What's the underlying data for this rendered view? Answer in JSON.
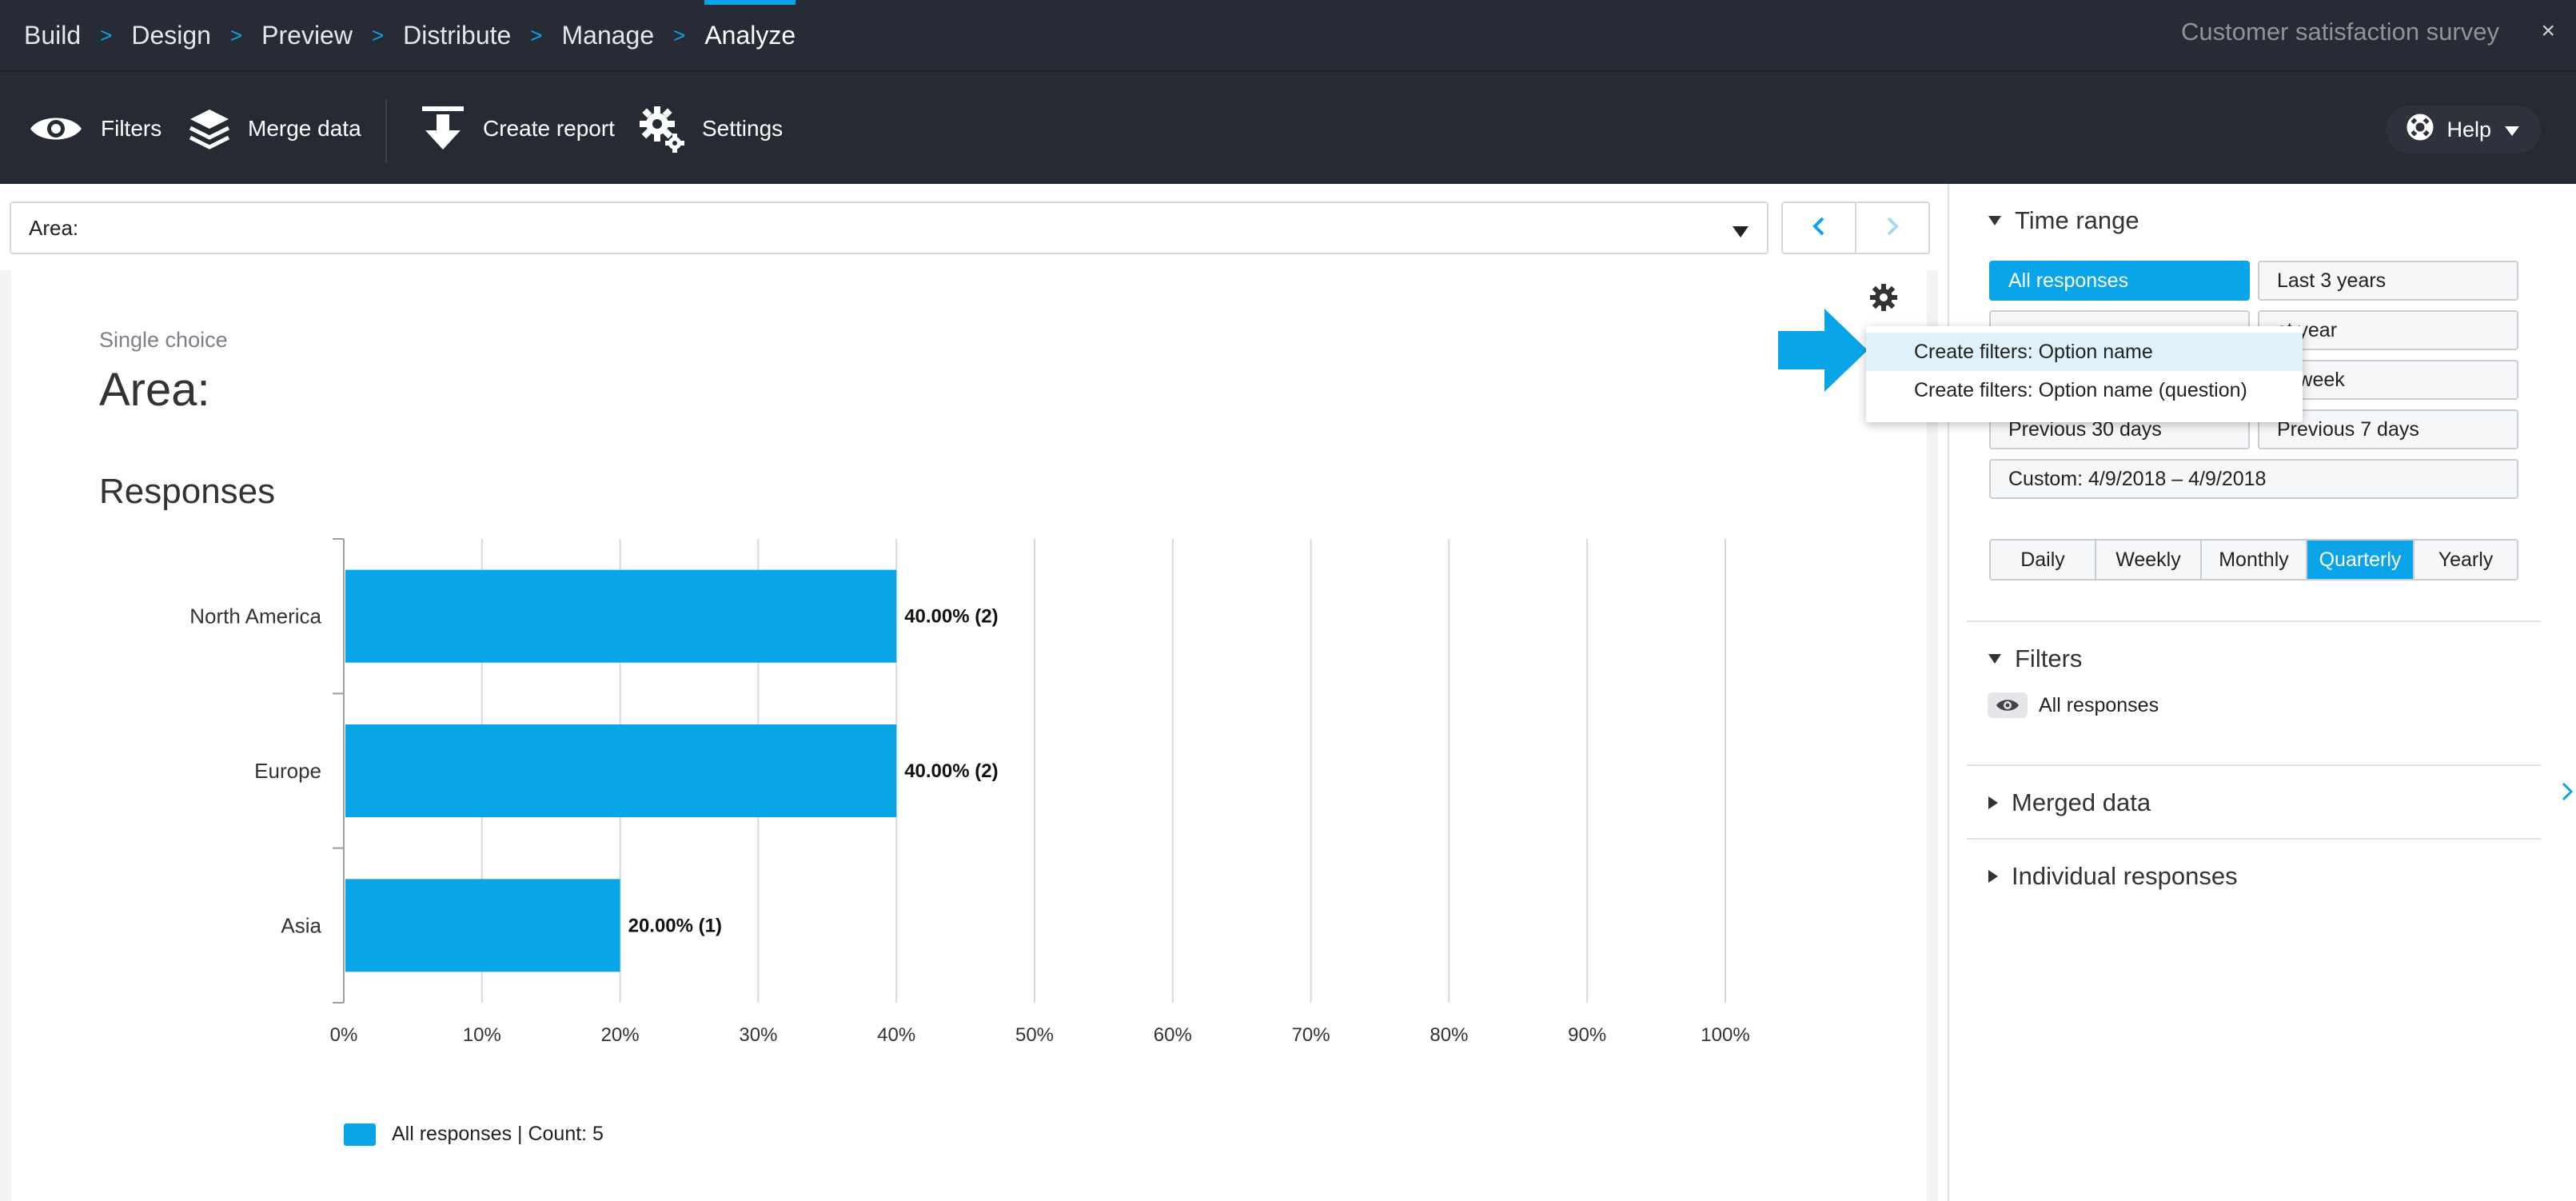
{
  "breadcrumbs": [
    {
      "label": "Build",
      "active": false
    },
    {
      "label": "Design",
      "active": false
    },
    {
      "label": "Preview",
      "active": false
    },
    {
      "label": "Distribute",
      "active": false
    },
    {
      "label": "Manage",
      "active": false
    },
    {
      "label": "Analyze",
      "active": true
    }
  ],
  "breadcrumb_separator": ">",
  "survey_title": "Customer satisfaction survey",
  "close_glyph": "×",
  "toolbar": {
    "filters_label": "Filters",
    "merge_label": "Merge data",
    "create_report_label": "Create report",
    "settings_label": "Settings",
    "help_label": "Help"
  },
  "selector": {
    "value": "Area:"
  },
  "question": {
    "type": "Single choice",
    "title": "Area:",
    "section": "Responses"
  },
  "context_menu": {
    "items": [
      "Create filters: Option name",
      "Create filters: Option name (question)"
    ],
    "highlighted_index": 0
  },
  "chart_data": {
    "type": "bar",
    "orientation": "horizontal",
    "categories": [
      "North America",
      "Europe",
      "Asia"
    ],
    "series": [
      {
        "name": "All responses | Count: 5",
        "values": [
          40,
          40,
          20
        ]
      }
    ],
    "value_labels": [
      "40.00% (2)",
      "40.00% (2)",
      "20.00% (1)"
    ],
    "xticks": [
      "0%",
      "10%",
      "20%",
      "30%",
      "40%",
      "50%",
      "60%",
      "70%",
      "80%",
      "90%",
      "100%"
    ],
    "xlim": [
      0,
      100
    ],
    "grid": true,
    "color": "#0aa5e8",
    "legend_position": "bottom-left"
  },
  "right_panel": {
    "time_range": {
      "heading": "Time range",
      "buttons": {
        "all_responses": "All responses",
        "last_3_years": "Last 3 years",
        "last_year": "st year",
        "last_week": "st week",
        "prev_30": "Previous 30 days",
        "prev_7": "Previous 7 days",
        "custom": "Custom: 4/9/2018 – 4/9/2018"
      },
      "selected": "All responses",
      "intervals": [
        "Daily",
        "Weekly",
        "Monthly",
        "Quarterly",
        "Yearly"
      ],
      "selected_interval": "Quarterly"
    },
    "filters": {
      "heading": "Filters",
      "item": "All responses"
    },
    "merged_data": {
      "heading": "Merged data"
    },
    "individual_responses": {
      "heading": "Individual responses"
    }
  },
  "colors": {
    "accent": "#0aa5e8",
    "topbar": "#262b35",
    "toolbar": "#252a33"
  },
  "icons": [
    "eye-icon",
    "layers-icon",
    "download-arrow-icon",
    "gears-icon",
    "lifebuoy-icon",
    "gear-icon",
    "chevron-left-icon",
    "chevron-right-icon"
  ]
}
